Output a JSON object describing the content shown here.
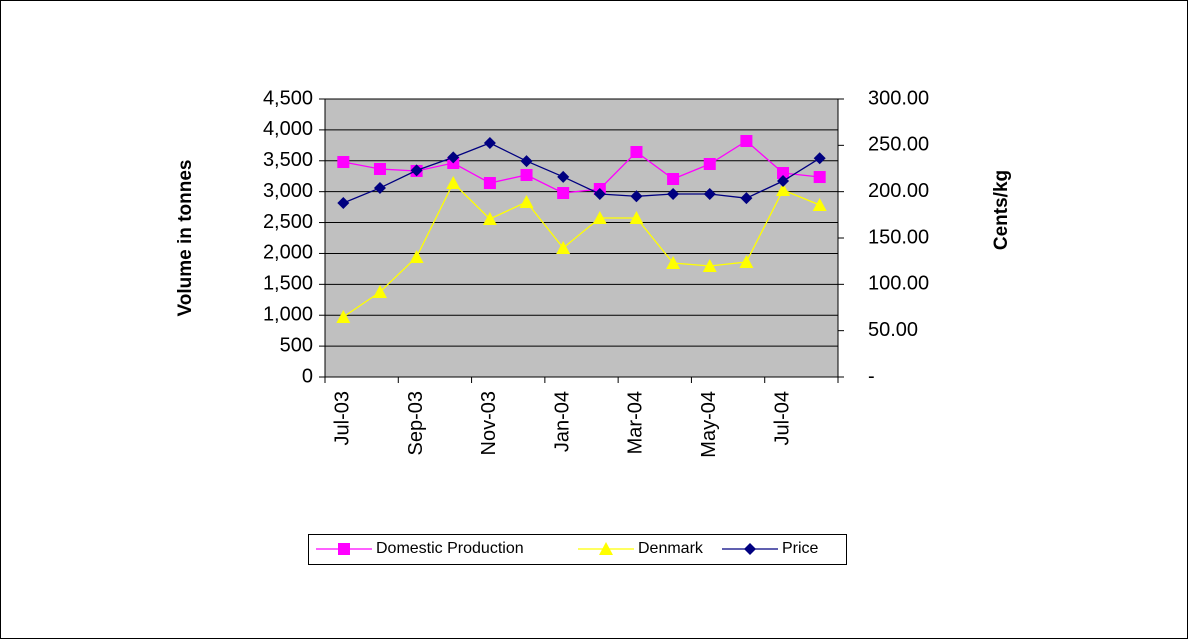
{
  "chart_data": {
    "type": "line",
    "categories": [
      "Jul-03",
      null,
      "Sep-03",
      null,
      "Nov-03",
      null,
      "Jan-04",
      null,
      "Mar-04",
      null,
      "May-04",
      null,
      "Jul-04",
      null
    ],
    "y_label": "Volume in tonnes",
    "y2_label": "Cents/kg",
    "series": [
      {
        "name": "Domestic Production",
        "color": "#FF00FF",
        "marker": "square",
        "values": [
          3480,
          3367,
          3335,
          3464,
          3140,
          3270,
          2978,
          3043,
          3642,
          3205,
          3448,
          3820,
          3302,
          3237
        ]
      },
      {
        "name": "Denmark",
        "color": "#FFFF00",
        "marker": "triangle",
        "values": [
          971,
          1376,
          1942,
          3140,
          2558,
          2833,
          2088,
          2574,
          2574,
          1845,
          1797,
          1862,
          3027,
          2784
        ]
      },
      {
        "name": "Price",
        "color": "#000080",
        "marker": "diamond",
        "axis": "y2",
        "values": [
          187.8,
          204,
          223,
          237,
          252.5,
          233,
          216,
          197.5,
          195,
          197.5,
          197.5,
          193,
          211.5,
          236
        ]
      }
    ],
    "ylim": [
      0,
      4500
    ],
    "yticks": [
      0,
      500,
      {
        "value": 1000,
        "label": "1,000"
      },
      {
        "value": 1500,
        "label": "1,500"
      },
      {
        "value": 2000,
        "label": "2,000"
      },
      {
        "value": 2500,
        "label": "2,500"
      },
      {
        "value": 3000,
        "label": "3,000"
      },
      {
        "value": 3500,
        "label": "3,500"
      },
      {
        "value": 4000,
        "label": "4,000"
      },
      {
        "value": 4500,
        "label": "4,500"
      }
    ],
    "y2lim": [
      0,
      300
    ],
    "y2ticks": [
      {
        "value": 0,
        "label": "-"
      },
      {
        "value": 50,
        "label": "50.00"
      },
      {
        "value": 100,
        "label": "100.00"
      },
      {
        "value": 150,
        "label": "150.00"
      },
      {
        "value": 200,
        "label": "200.00"
      },
      {
        "value": 250,
        "label": "250.00"
      },
      {
        "value": 300,
        "label": "300.00"
      }
    ],
    "grid": true,
    "plot_background": "#C0C0C0",
    "legend": "bottom"
  }
}
